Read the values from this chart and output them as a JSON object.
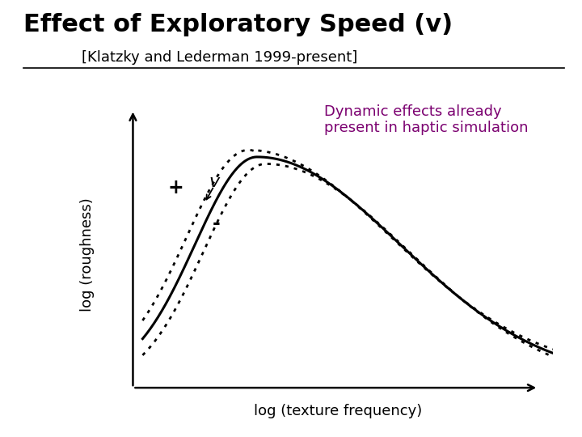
{
  "title": "Effect of Exploratory Speed (v)",
  "subtitle": "[Klatzky and Lederman 1999-present]",
  "title_color": "#000000",
  "subtitle_color": "#000000",
  "title_fontsize": 22,
  "subtitle_fontsize": 13,
  "xlabel": "log (texture frequency)",
  "ylabel": "log (roughness)",
  "xlabel_fontsize": 13,
  "ylabel_fontsize": 13,
  "annotation_text": "Dynamic effects already\npresent in haptic simulation",
  "annotation_color": "#7B0070",
  "annotation_fontsize": 13,
  "v_label": "v",
  "plus_label": "+",
  "minus_label": "-",
  "curve_color": "#000000",
  "dotted_color": "#000000",
  "background_color": "#ffffff"
}
